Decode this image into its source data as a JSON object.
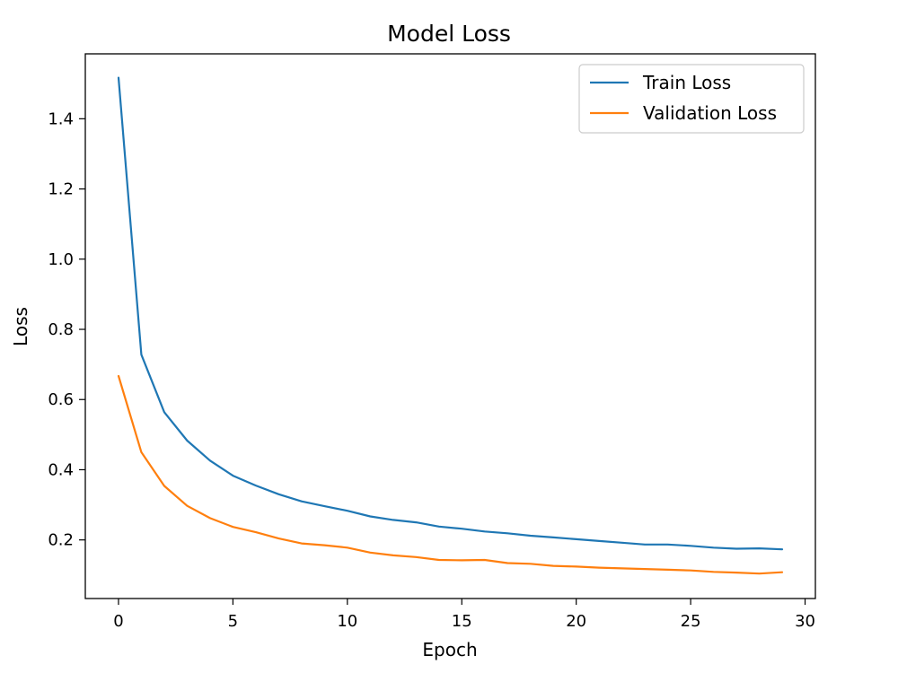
{
  "chart_data": {
    "type": "line",
    "title": "Model Loss",
    "xlabel": "Epoch",
    "ylabel": "Loss",
    "xlim": [
      -1.45,
      30.45
    ],
    "ylim": [
      0.033,
      1.585
    ],
    "xticks": [
      0,
      5,
      10,
      15,
      20,
      25,
      30
    ],
    "xtick_labels": [
      "0",
      "5",
      "10",
      "15",
      "20",
      "25",
      "30"
    ],
    "yticks": [
      0.2,
      0.4,
      0.6,
      0.8,
      1.0,
      1.2,
      1.4
    ],
    "ytick_labels": [
      "0.2",
      "0.4",
      "0.6",
      "0.8",
      "1.0",
      "1.2",
      "1.4"
    ],
    "grid": false,
    "legend_position": "top-right",
    "x": [
      0,
      1,
      2,
      3,
      4,
      5,
      6,
      7,
      8,
      9,
      10,
      11,
      12,
      13,
      14,
      15,
      16,
      17,
      18,
      19,
      20,
      21,
      22,
      23,
      24,
      25,
      26,
      27,
      28,
      29
    ],
    "series": [
      {
        "name": "Train Loss",
        "color": "#1f77b4",
        "values": [
          1.517,
          0.728,
          0.564,
          0.483,
          0.426,
          0.383,
          0.355,
          0.33,
          0.31,
          0.296,
          0.283,
          0.267,
          0.257,
          0.25,
          0.238,
          0.232,
          0.224,
          0.219,
          0.212,
          0.207,
          0.202,
          0.197,
          0.192,
          0.187,
          0.187,
          0.183,
          0.178,
          0.175,
          0.176,
          0.173
        ]
      },
      {
        "name": "Validation Loss",
        "color": "#ff7f0e",
        "values": [
          0.667,
          0.45,
          0.354,
          0.297,
          0.262,
          0.237,
          0.222,
          0.204,
          0.19,
          0.185,
          0.178,
          0.164,
          0.156,
          0.151,
          0.143,
          0.142,
          0.143,
          0.134,
          0.132,
          0.126,
          0.124,
          0.121,
          0.119,
          0.117,
          0.115,
          0.113,
          0.109,
          0.107,
          0.104,
          0.108
        ]
      }
    ]
  }
}
